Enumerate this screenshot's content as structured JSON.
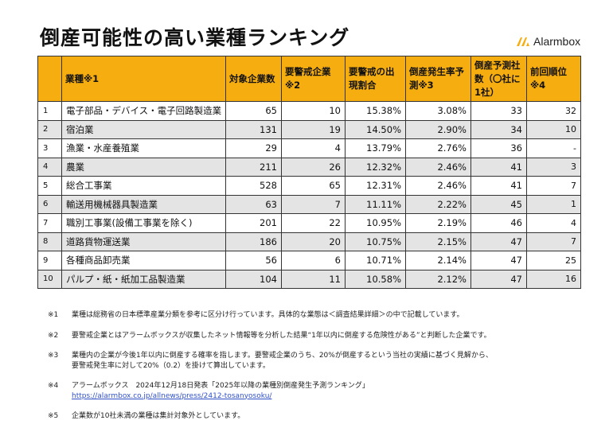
{
  "title": "倒産可能性の高い業種ランキング",
  "logo": {
    "text": "Alarmbox",
    "icon": "alarmbox-logo-icon",
    "color": "#f6ad0f"
  },
  "table": {
    "header_bg": "#f6ad0f",
    "headers": [
      "",
      "業種※1",
      "対象企業数",
      "要警戒企業※2",
      "要警戒の出現割合",
      "倒産発生率予測※3",
      "倒産予測社数（〇社に1社）",
      "前回順位※4"
    ],
    "rows": [
      {
        "rank": "1",
        "industry": "電子部品・デバイス・電子回路製造業",
        "companies": "65",
        "caution": "10",
        "ratio": "15.38%",
        "rate": "3.08%",
        "one_in": "33",
        "prev": "32"
      },
      {
        "rank": "2",
        "industry": "宿泊業",
        "companies": "131",
        "caution": "19",
        "ratio": "14.50%",
        "rate": "2.90%",
        "one_in": "34",
        "prev": "10"
      },
      {
        "rank": "3",
        "industry": "漁業・水産養殖業",
        "companies": "29",
        "caution": "4",
        "ratio": "13.79%",
        "rate": "2.76%",
        "one_in": "36",
        "prev": "-"
      },
      {
        "rank": "4",
        "industry": "農業",
        "companies": "211",
        "caution": "26",
        "ratio": "12.32%",
        "rate": "2.46%",
        "one_in": "41",
        "prev": "3"
      },
      {
        "rank": "5",
        "industry": "総合工事業",
        "companies": "528",
        "caution": "65",
        "ratio": "12.31%",
        "rate": "2.46%",
        "one_in": "41",
        "prev": "7"
      },
      {
        "rank": "6",
        "industry": "輸送用機械器具製造業",
        "companies": "63",
        "caution": "7",
        "ratio": "11.11%",
        "rate": "2.22%",
        "one_in": "45",
        "prev": "1"
      },
      {
        "rank": "7",
        "industry": "職別工事業(設備工事業を除く)",
        "companies": "201",
        "caution": "22",
        "ratio": "10.95%",
        "rate": "2.19%",
        "one_in": "46",
        "prev": "4"
      },
      {
        "rank": "8",
        "industry": "道路貨物運送業",
        "companies": "186",
        "caution": "20",
        "ratio": "10.75%",
        "rate": "2.15%",
        "one_in": "47",
        "prev": "7"
      },
      {
        "rank": "9",
        "industry": "各種商品卸売業",
        "companies": "56",
        "caution": "6",
        "ratio": "10.71%",
        "rate": "2.14%",
        "one_in": "47",
        "prev": "25"
      },
      {
        "rank": "10",
        "industry": "パルプ・紙・紙加工品製造業",
        "companies": "104",
        "caution": "11",
        "ratio": "10.58%",
        "rate": "2.12%",
        "one_in": "47",
        "prev": "16"
      }
    ]
  },
  "notes": [
    {
      "no": "※1",
      "lines": [
        "業種は総務省の日本標準産業分類を参考に区分け行っています。具体的な業態は＜調査結果詳細＞の中で記載しています。"
      ]
    },
    {
      "no": "※2",
      "lines": [
        "要警戒企業とはアラームボックスが収集したネット情報等を分析した結果“1年以内に倒産する危険性がある”と判断した企業です。"
      ]
    },
    {
      "no": "※3",
      "lines": [
        "業種内の企業が今後1年以内に倒産する確率を指します。要警戒企業のうち、20%が倒産するという当社の実績に基づく見解から、",
        "要警戒発生率に対して20%（0.2）を掛けて算出しています。"
      ]
    },
    {
      "no": "※4",
      "lines": [
        "アラームボックス　2024年12月18日発表「2025年以降の業種別倒産発生予測ランキング」"
      ],
      "link": "https://alarmbox.co.jp/allnews/press/2412-tosanyosoku/"
    },
    {
      "no": "※5",
      "lines": [
        "企業数が10社未満の業種は集計対象外としています。"
      ]
    }
  ]
}
